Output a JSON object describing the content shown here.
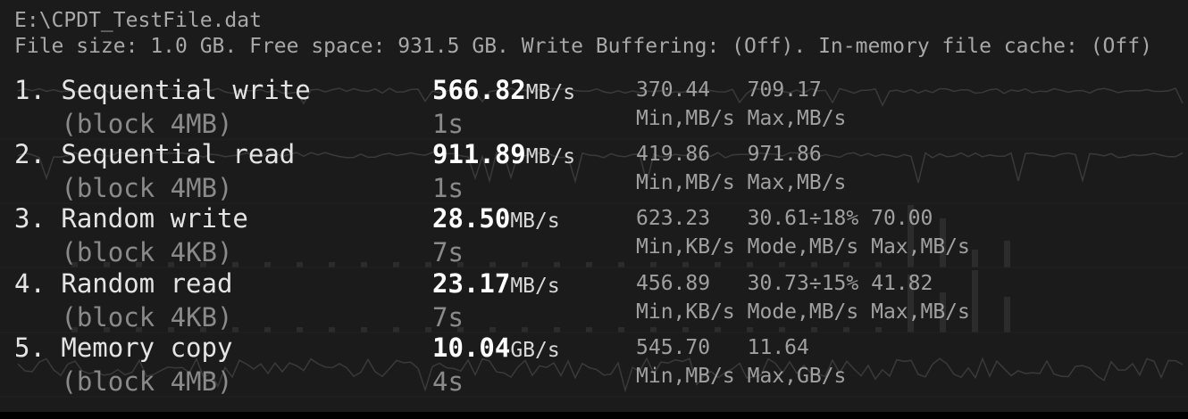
{
  "header": {
    "file_path": "E:\\CPDT_TestFile.dat",
    "file_info": "File size: 1.0 GB. Free space: 931.5 GB. Write Buffering: (Off). In-memory file cache: (Off)"
  },
  "tests": [
    {
      "title": "1. Sequential write",
      "block": "(block 4MB)",
      "value": "566.82",
      "unit": "MB/s",
      "time": "1s",
      "stats": "370.44   709.17",
      "stats_labels": "Min,MB/s Max,MB/s",
      "graph": "line"
    },
    {
      "title": "2. Sequential read",
      "block": "(block 4MB)",
      "value": "911.89",
      "unit": "MB/s",
      "time": "1s",
      "stats": "419.86   971.86",
      "stats_labels": "Min,MB/s Max,MB/s",
      "graph": "line"
    },
    {
      "title": "3. Random write",
      "block": "(block 4KB)",
      "value": "28.50",
      "unit": "MB/s",
      "time": "7s",
      "stats": "623.23   30.61÷18% 70.00",
      "stats_labels": "Min,KB/s Mode,MB/s Max,MB/s",
      "graph": "histogram"
    },
    {
      "title": "4. Random read",
      "block": "(block 4KB)",
      "value": "23.17",
      "unit": "MB/s",
      "time": "7s",
      "stats": "456.89   30.73÷15% 41.82",
      "stats_labels": "Min,KB/s Mode,MB/s Max,MB/s",
      "graph": "histogram"
    },
    {
      "title": "5. Memory copy",
      "block": "(block 4MB)",
      "value": "10.04",
      "unit": "GB/s",
      "time": "4s",
      "stats": "545.70   11.64",
      "stats_labels": "Min,MB/s Max,GB/s",
      "graph": "line"
    }
  ],
  "colors": {
    "background": "#1b1b1b",
    "value": "#ffffff",
    "graph": "#3a3a3a"
  }
}
